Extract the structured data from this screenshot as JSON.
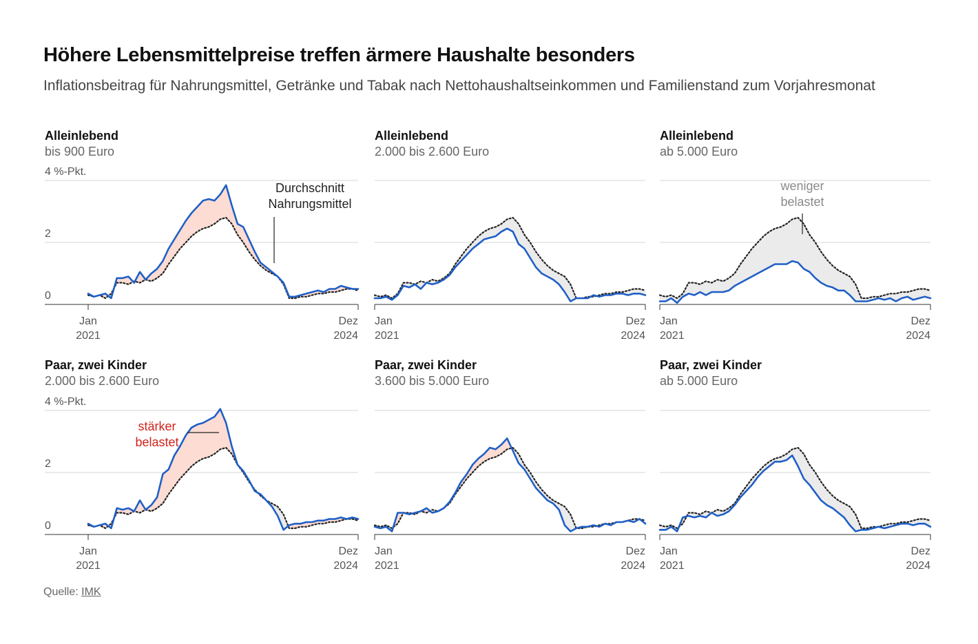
{
  "title": "Höhere Lebensmittelpreise treffen ärmere Haushalte besonders",
  "subtitle": "Inflationsbeitrag für Nahrungsmittel, Getränke und Tabak nach Nettohaushaltseinkommen und Familienstand zum Vorjahresmonat",
  "source_label": "Quelle:",
  "source": "IMK",
  "chart_data": [
    {
      "type": "line",
      "title": "Alleinlebend",
      "subtitle": "bis 900 Euro",
      "categories": [
        "Jan 2021",
        null,
        null,
        null,
        null,
        null,
        null,
        null,
        null,
        null,
        null,
        null,
        null,
        null,
        null,
        null,
        null,
        null,
        null,
        null,
        null,
        null,
        null,
        null,
        null,
        null,
        null,
        null,
        null,
        null,
        null,
        null,
        null,
        null,
        null,
        null,
        null,
        null,
        null,
        null,
        null,
        null,
        null,
        null,
        null,
        null,
        null,
        "Dez 2024"
      ],
      "ylim": [
        0,
        4
      ],
      "yticks": [
        0,
        2,
        {
          "value": 4,
          "label": "4 %-Pkt."
        }
      ],
      "tick_labels": true,
      "grid": true,
      "annotation": {
        "text": "Durchschnitt Nahrungsmittel",
        "color": "#222222"
      },
      "series": [
        {
          "color": "#1f5fc6",
          "style": "solid",
          "values": [
            0.35,
            0.25,
            0.3,
            0.35,
            0.2,
            0.85,
            0.85,
            0.9,
            0.7,
            1.05,
            0.8,
            1.0,
            1.15,
            1.4,
            1.8,
            2.1,
            2.4,
            2.7,
            2.95,
            3.15,
            3.35,
            3.4,
            3.35,
            3.55,
            3.85,
            3.2,
            2.6,
            2.5,
            2.1,
            1.7,
            1.35,
            1.2,
            1.05,
            0.9,
            0.7,
            0.25,
            0.25,
            0.3,
            0.35,
            0.4,
            0.45,
            0.4,
            0.5,
            0.5,
            0.6,
            0.55,
            0.5,
            0.5
          ]
        },
        {
          "color": "#222222",
          "style": "dotted",
          "values": [
            0.3,
            0.25,
            0.3,
            0.2,
            0.35,
            0.7,
            0.7,
            0.65,
            0.75,
            0.7,
            0.8,
            0.75,
            0.85,
            1.0,
            1.3,
            1.55,
            1.8,
            2.0,
            2.2,
            2.35,
            2.45,
            2.5,
            2.6,
            2.75,
            2.8,
            2.6,
            2.25,
            2.0,
            1.7,
            1.45,
            1.25,
            1.1,
            1.0,
            0.9,
            0.65,
            0.2,
            0.2,
            0.25,
            0.25,
            0.3,
            0.35,
            0.35,
            0.4,
            0.4,
            0.45,
            0.5,
            0.5,
            0.45
          ]
        }
      ]
    },
    {
      "type": "line",
      "title": "Alleinlebend",
      "subtitle": "2.000 bis 2.600 Euro",
      "categories": [
        "Jan 2021",
        null,
        null,
        null,
        null,
        null,
        null,
        null,
        null,
        null,
        null,
        null,
        null,
        null,
        null,
        null,
        null,
        null,
        null,
        null,
        null,
        null,
        null,
        null,
        null,
        null,
        null,
        null,
        null,
        null,
        null,
        null,
        null,
        null,
        null,
        null,
        null,
        null,
        null,
        null,
        null,
        null,
        null,
        null,
        null,
        null,
        null,
        "Dez 2024"
      ],
      "ylim": [
        0,
        4
      ],
      "yticks": [
        0,
        2,
        4
      ],
      "tick_labels": false,
      "grid": true,
      "series": [
        {
          "color": "#1f5fc6",
          "style": "solid",
          "values": [
            0.2,
            0.2,
            0.25,
            0.15,
            0.3,
            0.6,
            0.55,
            0.65,
            0.5,
            0.7,
            0.65,
            0.7,
            0.8,
            0.95,
            1.2,
            1.4,
            1.6,
            1.8,
            1.95,
            2.1,
            2.15,
            2.2,
            2.35,
            2.45,
            2.35,
            1.95,
            1.8,
            1.5,
            1.2,
            1.0,
            0.9,
            0.8,
            0.65,
            0.4,
            0.1,
            0.2,
            0.2,
            0.2,
            0.3,
            0.25,
            0.3,
            0.3,
            0.35,
            0.35,
            0.3,
            0.35,
            0.35,
            0.3
          ]
        },
        {
          "color": "#222222",
          "style": "dotted",
          "values": [
            0.3,
            0.25,
            0.3,
            0.2,
            0.35,
            0.7,
            0.7,
            0.65,
            0.75,
            0.7,
            0.8,
            0.75,
            0.85,
            1.0,
            1.3,
            1.55,
            1.8,
            2.0,
            2.2,
            2.35,
            2.45,
            2.5,
            2.6,
            2.75,
            2.8,
            2.6,
            2.25,
            2.0,
            1.7,
            1.45,
            1.25,
            1.1,
            1.0,
            0.9,
            0.65,
            0.2,
            0.2,
            0.25,
            0.25,
            0.3,
            0.35,
            0.35,
            0.4,
            0.4,
            0.45,
            0.5,
            0.5,
            0.45
          ]
        }
      ]
    },
    {
      "type": "line",
      "title": "Alleinlebend",
      "subtitle": "ab 5.000 Euro",
      "categories": [
        "Jan 2021",
        null,
        null,
        null,
        null,
        null,
        null,
        null,
        null,
        null,
        null,
        null,
        null,
        null,
        null,
        null,
        null,
        null,
        null,
        null,
        null,
        null,
        null,
        null,
        null,
        null,
        null,
        null,
        null,
        null,
        null,
        null,
        null,
        null,
        null,
        null,
        null,
        null,
        null,
        null,
        null,
        null,
        null,
        null,
        null,
        null,
        null,
        "Dez 2024"
      ],
      "ylim": [
        0,
        4
      ],
      "yticks": [
        0,
        2,
        4
      ],
      "tick_labels": false,
      "grid": true,
      "annotation": {
        "text": "weniger belastet",
        "color": "#8a8a8a"
      },
      "series": [
        {
          "color": "#1f5fc6",
          "style": "solid",
          "values": [
            0.1,
            0.1,
            0.2,
            0.05,
            0.25,
            0.35,
            0.3,
            0.4,
            0.3,
            0.4,
            0.4,
            0.4,
            0.45,
            0.6,
            0.7,
            0.8,
            0.9,
            1.0,
            1.1,
            1.2,
            1.3,
            1.3,
            1.3,
            1.4,
            1.35,
            1.15,
            1.05,
            0.85,
            0.7,
            0.6,
            0.55,
            0.45,
            0.45,
            0.3,
            0.1,
            0.1,
            0.1,
            0.15,
            0.2,
            0.15,
            0.2,
            0.1,
            0.2,
            0.25,
            0.15,
            0.2,
            0.25,
            0.2
          ]
        },
        {
          "color": "#222222",
          "style": "dotted",
          "values": [
            0.3,
            0.25,
            0.3,
            0.2,
            0.35,
            0.7,
            0.7,
            0.65,
            0.75,
            0.7,
            0.8,
            0.75,
            0.85,
            1.0,
            1.3,
            1.55,
            1.8,
            2.0,
            2.2,
            2.35,
            2.45,
            2.5,
            2.6,
            2.75,
            2.8,
            2.6,
            2.25,
            2.0,
            1.7,
            1.45,
            1.25,
            1.1,
            1.0,
            0.9,
            0.65,
            0.2,
            0.2,
            0.25,
            0.25,
            0.3,
            0.35,
            0.35,
            0.4,
            0.4,
            0.45,
            0.5,
            0.5,
            0.45
          ]
        }
      ]
    },
    {
      "type": "line",
      "title": "Paar, zwei Kinder",
      "subtitle": "2.000 bis 2.600 Euro",
      "categories": [
        "Jan 2021",
        null,
        null,
        null,
        null,
        null,
        null,
        null,
        null,
        null,
        null,
        null,
        null,
        null,
        null,
        null,
        null,
        null,
        null,
        null,
        null,
        null,
        null,
        null,
        null,
        null,
        null,
        null,
        null,
        null,
        null,
        null,
        null,
        null,
        null,
        null,
        null,
        null,
        null,
        null,
        null,
        null,
        null,
        null,
        null,
        null,
        null,
        "Dez 2024"
      ],
      "ylim": [
        0,
        4
      ],
      "yticks": [
        0,
        2,
        {
          "value": 4,
          "label": "4 %-Pkt."
        }
      ],
      "tick_labels": true,
      "grid": true,
      "annotation": {
        "text": "stärker belastet",
        "color": "#d0241b"
      },
      "series": [
        {
          "color": "#1f5fc6",
          "style": "solid",
          "values": [
            0.35,
            0.25,
            0.3,
            0.35,
            0.2,
            0.85,
            0.8,
            0.85,
            0.75,
            1.1,
            0.8,
            0.95,
            1.2,
            1.95,
            2.1,
            2.55,
            2.85,
            3.2,
            3.45,
            3.55,
            3.6,
            3.7,
            3.8,
            4.05,
            3.6,
            2.85,
            2.25,
            2.05,
            1.75,
            1.4,
            1.3,
            1.1,
            0.9,
            0.6,
            0.15,
            0.3,
            0.35,
            0.35,
            0.4,
            0.4,
            0.45,
            0.45,
            0.5,
            0.5,
            0.55,
            0.5,
            0.55,
            0.5
          ]
        },
        {
          "color": "#222222",
          "style": "dotted",
          "values": [
            0.3,
            0.25,
            0.3,
            0.2,
            0.35,
            0.7,
            0.7,
            0.65,
            0.75,
            0.7,
            0.8,
            0.75,
            0.85,
            1.0,
            1.3,
            1.55,
            1.8,
            2.0,
            2.2,
            2.35,
            2.45,
            2.5,
            2.6,
            2.75,
            2.8,
            2.6,
            2.25,
            2.0,
            1.7,
            1.45,
            1.25,
            1.1,
            1.0,
            0.9,
            0.65,
            0.2,
            0.2,
            0.25,
            0.25,
            0.3,
            0.35,
            0.35,
            0.4,
            0.4,
            0.45,
            0.5,
            0.5,
            0.45
          ]
        }
      ]
    },
    {
      "type": "line",
      "title": "Paar, zwei Kinder",
      "subtitle": "3.600 bis 5.000 Euro",
      "categories": [
        "Jan 2021",
        null,
        null,
        null,
        null,
        null,
        null,
        null,
        null,
        null,
        null,
        null,
        null,
        null,
        null,
        null,
        null,
        null,
        null,
        null,
        null,
        null,
        null,
        null,
        null,
        null,
        null,
        null,
        null,
        null,
        null,
        null,
        null,
        null,
        null,
        null,
        null,
        null,
        null,
        null,
        null,
        null,
        null,
        null,
        null,
        null,
        null,
        "Dez 2024"
      ],
      "ylim": [
        0,
        4
      ],
      "yticks": [
        0,
        2,
        4
      ],
      "tick_labels": false,
      "grid": true,
      "series": [
        {
          "color": "#1f5fc6",
          "style": "solid",
          "values": [
            0.25,
            0.2,
            0.25,
            0.1,
            0.7,
            0.7,
            0.65,
            0.7,
            0.75,
            0.85,
            0.7,
            0.75,
            0.85,
            1.05,
            1.35,
            1.7,
            1.95,
            2.25,
            2.45,
            2.6,
            2.8,
            2.75,
            2.9,
            3.1,
            2.7,
            2.3,
            2.1,
            1.8,
            1.5,
            1.3,
            1.1,
            1.0,
            0.8,
            0.3,
            0.1,
            0.2,
            0.25,
            0.25,
            0.3,
            0.25,
            0.35,
            0.3,
            0.4,
            0.4,
            0.45,
            0.4,
            0.5,
            0.35
          ]
        },
        {
          "color": "#222222",
          "style": "dotted",
          "values": [
            0.3,
            0.25,
            0.3,
            0.2,
            0.35,
            0.7,
            0.7,
            0.65,
            0.75,
            0.7,
            0.8,
            0.75,
            0.85,
            1.0,
            1.3,
            1.55,
            1.8,
            2.0,
            2.2,
            2.35,
            2.45,
            2.5,
            2.6,
            2.75,
            2.8,
            2.6,
            2.25,
            2.0,
            1.7,
            1.45,
            1.25,
            1.1,
            1.0,
            0.9,
            0.65,
            0.2,
            0.2,
            0.25,
            0.25,
            0.3,
            0.35,
            0.35,
            0.4,
            0.4,
            0.45,
            0.5,
            0.5,
            0.45
          ]
        }
      ]
    },
    {
      "type": "line",
      "title": "Paar, zwei Kinder",
      "subtitle": "ab 5.000 Euro",
      "categories": [
        "Jan 2021",
        null,
        null,
        null,
        null,
        null,
        null,
        null,
        null,
        null,
        null,
        null,
        null,
        null,
        null,
        null,
        null,
        null,
        null,
        null,
        null,
        null,
        null,
        null,
        null,
        null,
        null,
        null,
        null,
        null,
        null,
        null,
        null,
        null,
        null,
        null,
        null,
        null,
        null,
        null,
        null,
        null,
        null,
        null,
        null,
        null,
        null,
        "Dez 2024"
      ],
      "ylim": [
        0,
        4
      ],
      "yticks": [
        0,
        2,
        4
      ],
      "tick_labels": false,
      "grid": true,
      "series": [
        {
          "color": "#1f5fc6",
          "style": "solid",
          "values": [
            0.15,
            0.15,
            0.25,
            0.1,
            0.55,
            0.6,
            0.55,
            0.6,
            0.55,
            0.7,
            0.6,
            0.65,
            0.75,
            0.95,
            1.2,
            1.4,
            1.6,
            1.85,
            2.05,
            2.2,
            2.35,
            2.35,
            2.4,
            2.55,
            2.2,
            1.8,
            1.6,
            1.35,
            1.1,
            0.95,
            0.85,
            0.7,
            0.55,
            0.3,
            0.1,
            0.15,
            0.15,
            0.2,
            0.25,
            0.2,
            0.25,
            0.3,
            0.35,
            0.35,
            0.3,
            0.35,
            0.35,
            0.25
          ]
        },
        {
          "color": "#222222",
          "style": "dotted",
          "values": [
            0.3,
            0.25,
            0.3,
            0.2,
            0.35,
            0.7,
            0.7,
            0.65,
            0.75,
            0.7,
            0.8,
            0.75,
            0.85,
            1.0,
            1.3,
            1.55,
            1.8,
            2.0,
            2.2,
            2.35,
            2.45,
            2.5,
            2.6,
            2.75,
            2.8,
            2.6,
            2.25,
            2.0,
            1.7,
            1.45,
            1.25,
            1.1,
            1.0,
            0.9,
            0.65,
            0.2,
            0.2,
            0.25,
            0.25,
            0.3,
            0.35,
            0.35,
            0.4,
            0.4,
            0.45,
            0.5,
            0.5,
            0.45
          ]
        }
      ]
    }
  ]
}
